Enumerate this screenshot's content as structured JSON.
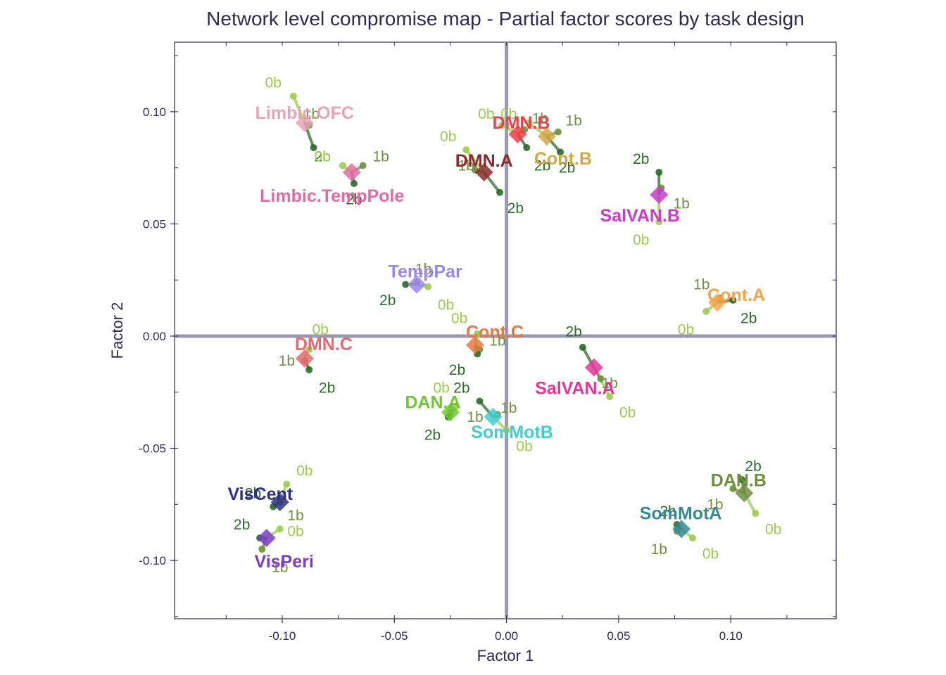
{
  "chart_data": {
    "type": "scatter",
    "title": "Network level compromise map - Partial factor scores by task design",
    "xlabel": "Factor 1",
    "ylabel": "Factor 2",
    "xlim": [
      -0.148,
      0.147
    ],
    "ylim": [
      -0.126,
      0.131
    ],
    "xticks": [
      -0.1,
      -0.05,
      0.0,
      0.05,
      0.1
    ],
    "yticks": [
      -0.1,
      -0.05,
      0.0,
      0.05,
      0.1
    ],
    "tick_labels_x": [
      "-0.10",
      "-0.05",
      "0.00",
      "0.05",
      "0.10"
    ],
    "tick_labels_y": [
      "-0.10",
      "-0.05",
      "0.00",
      "0.05",
      "0.10"
    ],
    "grid": false,
    "reference_lines": {
      "x": 0,
      "y": 0,
      "color": "#9b98b3"
    },
    "design_colors": {
      "0b": "#9ccc4c",
      "1b": "#6f8f3f",
      "2b": "#2e6b2a"
    },
    "networks": [
      {
        "name": "Limbic.OFC",
        "color": "#e8a4b4",
        "center": [
          -0.09,
          0.095
        ],
        "partials": {
          "0b": [
            -0.095,
            0.107
          ],
          "1b": [
            -0.088,
            0.094
          ],
          "2b": [
            -0.086,
            0.084
          ]
        },
        "labels": {
          "0b": [
            -0.104,
            0.113
          ],
          "1b": [
            -0.087,
            0.099
          ],
          "2b": [
            -0.082,
            0.08
          ]
        }
      },
      {
        "name": "Limbic.TempPole",
        "color": "#e46aa5",
        "center": [
          -0.069,
          0.073
        ],
        "partials": {
          "0b": [
            -0.073,
            0.076
          ],
          "1b": [
            -0.064,
            0.076
          ],
          "2b": [
            -0.068,
            0.068
          ]
        },
        "labels": {
          "0b": [
            -0.082,
            0.08
          ],
          "1b": [
            -0.056,
            0.08
          ],
          "2b": [
            -0.068,
            0.061
          ]
        }
      },
      {
        "name": "DMN.B",
        "color": "#ee3e4a",
        "center": [
          0.005,
          0.09
        ],
        "partials": {
          "0b": [
            -0.002,
            0.094
          ],
          "1b": [
            0.008,
            0.092
          ],
          "2b": [
            0.009,
            0.084
          ]
        },
        "labels": {
          "0b": [
            -0.009,
            0.099
          ],
          "1b": [
            0.015,
            0.097
          ],
          "2b": [
            0.016,
            0.076
          ]
        }
      },
      {
        "name": "Cont.B",
        "color": "#d4a645",
        "center": [
          0.018,
          0.089
        ],
        "partials": {
          "0b": [
            0.01,
            0.095
          ],
          "1b": [
            0.023,
            0.091
          ],
          "2b": [
            0.024,
            0.082
          ]
        },
        "labels": {
          "0b": [
            0.001,
            0.099
          ],
          "1b": [
            0.03,
            0.096
          ],
          "2b": [
            0.027,
            0.075
          ]
        }
      },
      {
        "name": "DMN.A",
        "color": "#8c2a2a",
        "center": [
          -0.01,
          0.073
        ],
        "partials": {
          "0b": [
            -0.018,
            0.083
          ],
          "1b": [
            -0.014,
            0.074
          ],
          "2b": [
            -0.003,
            0.064
          ]
        },
        "labels": {
          "0b": [
            -0.026,
            0.089
          ],
          "1b": [
            -0.018,
            0.076
          ],
          "2b": [
            0.004,
            0.057
          ]
        }
      },
      {
        "name": "SalVAN.B",
        "color": "#c83cc9",
        "center": [
          0.068,
          0.063
        ],
        "partials": {
          "0b": [
            0.068,
            0.051
          ],
          "1b": [
            0.069,
            0.066
          ],
          "2b": [
            0.068,
            0.073
          ]
        },
        "labels": {
          "0b": [
            0.06,
            0.043
          ],
          "1b": [
            0.078,
            0.059
          ],
          "2b": [
            0.06,
            0.079
          ]
        }
      },
      {
        "name": "TempPar",
        "color": "#9b86ec",
        "center": [
          -0.04,
          0.023
        ],
        "partials": {
          "0b": [
            -0.035,
            0.022
          ],
          "1b": [
            -0.04,
            0.024
          ],
          "2b": [
            -0.045,
            0.023
          ]
        },
        "labels": {
          "0b": [
            -0.027,
            0.014
          ],
          "1b": [
            -0.037,
            0.03
          ],
          "2b": [
            -0.053,
            0.016
          ]
        }
      },
      {
        "name": "Cont.A",
        "color": "#f5a34a",
        "center": [
          0.094,
          0.015
        ],
        "partials": {
          "0b": [
            0.089,
            0.011
          ],
          "1b": [
            0.095,
            0.017
          ],
          "2b": [
            0.101,
            0.016
          ]
        },
        "labels": {
          "0b": [
            0.08,
            0.003
          ],
          "1b": [
            0.087,
            0.023
          ],
          "2b": [
            0.108,
            0.008
          ]
        }
      },
      {
        "name": "DMN.C",
        "color": "#e9686e",
        "center": [
          -0.09,
          -0.01
        ],
        "partials": {
          "0b": [
            -0.088,
            -0.006
          ],
          "1b": [
            -0.09,
            -0.011
          ],
          "2b": [
            -0.088,
            -0.015
          ]
        },
        "labels": {
          "0b": [
            -0.083,
            0.003
          ],
          "1b": [
            -0.098,
            -0.011
          ],
          "2b": [
            -0.08,
            -0.023
          ]
        }
      },
      {
        "name": "Cont.C",
        "color": "#e57a40",
        "center": [
          -0.014,
          -0.004
        ],
        "partials": {
          "0b": [
            -0.013,
            0.001
          ],
          "1b": [
            -0.012,
            -0.006
          ],
          "2b": [
            -0.013,
            -0.008
          ]
        },
        "labels": {
          "0b": [
            -0.021,
            0.008
          ],
          "1b": [
            -0.004,
            -0.002
          ],
          "2b": [
            -0.022,
            -0.015
          ]
        }
      },
      {
        "name": "SalVAN.A",
        "color": "#e4369a",
        "center": [
          0.039,
          -0.014
        ],
        "partials": {
          "0b": [
            0.046,
            -0.027
          ],
          "1b": [
            0.042,
            -0.019
          ],
          "2b": [
            0.034,
            -0.005
          ]
        },
        "labels": {
          "0b": [
            0.054,
            -0.034
          ],
          "1b": [
            0.046,
            -0.021
          ],
          "2b": [
            0.03,
            0.002
          ]
        }
      },
      {
        "name": "DAN.A",
        "color": "#6fc831",
        "center": [
          -0.025,
          -0.034
        ],
        "partials": {
          "0b": [
            -0.023,
            -0.032
          ],
          "1b": [
            -0.025,
            -0.034
          ],
          "2b": [
            -0.026,
            -0.036
          ]
        },
        "labels": {
          "0b": [
            -0.029,
            -0.023
          ],
          "1b": [
            -0.014,
            -0.036
          ],
          "2b": [
            -0.033,
            -0.044
          ]
        }
      },
      {
        "name": "SomMotB",
        "color": "#43cdd0",
        "center": [
          -0.006,
          -0.036
        ],
        "partials": {
          "0b": [
            0.0,
            -0.042
          ],
          "1b": [
            -0.004,
            -0.035
          ],
          "2b": [
            -0.012,
            -0.029
          ]
        },
        "labels": {
          "0b": [
            0.008,
            -0.049
          ],
          "1b": [
            0.001,
            -0.032
          ],
          "2b": [
            -0.02,
            -0.023
          ]
        }
      },
      {
        "name": "DAN.B",
        "color": "#6f8f3f",
        "center": [
          0.106,
          -0.07
        ],
        "partials": {
          "0b": [
            0.111,
            -0.079
          ],
          "1b": [
            0.101,
            -0.068
          ],
          "2b": [
            0.105,
            -0.064
          ]
        },
        "labels": {
          "0b": [
            0.119,
            -0.086
          ],
          "1b": [
            0.093,
            -0.075
          ],
          "2b": [
            0.11,
            -0.058
          ]
        }
      },
      {
        "name": "SomMotA",
        "color": "#348b97",
        "center": [
          0.078,
          -0.086
        ],
        "partials": {
          "0b": [
            0.083,
            -0.09
          ],
          "1b": [
            0.076,
            -0.087
          ],
          "2b": [
            0.076,
            -0.084
          ]
        },
        "labels": {
          "0b": [
            0.091,
            -0.097
          ],
          "1b": [
            0.068,
            -0.095
          ],
          "2b": [
            0.072,
            -0.078
          ]
        }
      },
      {
        "name": "VisCent",
        "color": "#2e3085",
        "center": [
          -0.101,
          -0.074
        ],
        "partials": {
          "0b": [
            -0.098,
            -0.066
          ],
          "1b": [
            -0.101,
            -0.074
          ],
          "2b": [
            -0.104,
            -0.076
          ]
        },
        "labels": {
          "0b": [
            -0.09,
            -0.06
          ],
          "1b": [
            -0.094,
            -0.08
          ],
          "2b": [
            -0.113,
            -0.07
          ]
        }
      },
      {
        "name": "VisPeri",
        "color": "#7a3cc8",
        "center": [
          -0.107,
          -0.09
        ],
        "partials": {
          "0b": [
            -0.101,
            -0.086
          ],
          "1b": [
            -0.109,
            -0.095
          ],
          "2b": [
            -0.11,
            -0.09
          ]
        },
        "labels": {
          "0b": [
            -0.094,
            -0.087
          ],
          "1b": [
            -0.101,
            -0.103
          ],
          "2b": [
            -0.118,
            -0.084
          ]
        }
      }
    ]
  }
}
